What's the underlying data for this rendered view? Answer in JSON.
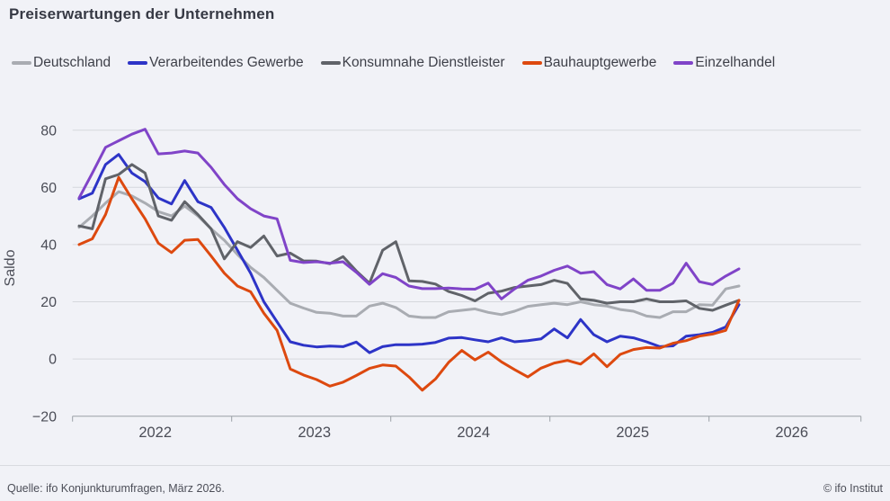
{
  "title": "Preiserwartungen der Unternehmen",
  "footer": {
    "source": "Quelle: ifo Konjunkturumfragen, März 2026.",
    "copyright": "© ifo Institut"
  },
  "colors": {
    "background": "#f1f2f7",
    "gridline": "#d6d8dd",
    "axis": "#9aa0a6",
    "text": "#4b4d57",
    "title": "#363944"
  },
  "chart_data": {
    "type": "line",
    "title": "Preiserwartungen der Unternehmen",
    "ylabel": "Saldo",
    "xlabel": "",
    "ylim": [
      -20,
      80
    ],
    "grid": true,
    "legend_position": "top",
    "yticks": {
      "values": [
        80,
        60,
        40,
        20,
        0,
        -20
      ],
      "labels": [
        "80",
        "60",
        "40",
        "20",
        "0",
        "−20"
      ]
    },
    "xticks": {
      "year_labels": [
        "2022",
        "2023",
        "2024",
        "2025",
        "2026"
      ]
    },
    "x": [
      "2022-01",
      "2022-02",
      "2022-03",
      "2022-04",
      "2022-05",
      "2022-06",
      "2022-07",
      "2022-08",
      "2022-09",
      "2022-10",
      "2022-11",
      "2022-12",
      "2023-01",
      "2023-02",
      "2023-03",
      "2023-04",
      "2023-05",
      "2023-06",
      "2023-07",
      "2023-08",
      "2023-09",
      "2023-10",
      "2023-11",
      "2023-12",
      "2024-01",
      "2024-02",
      "2024-03",
      "2024-04",
      "2024-05",
      "2024-06",
      "2024-07",
      "2024-08",
      "2024-09",
      "2024-10",
      "2024-11",
      "2024-12",
      "2025-01",
      "2025-02",
      "2025-03",
      "2025-04",
      "2025-05",
      "2025-06",
      "2025-07",
      "2025-08",
      "2025-09",
      "2025-10",
      "2025-11",
      "2025-12",
      "2026-01",
      "2026-02",
      "2026-03"
    ],
    "series": [
      {
        "id": "deutschland",
        "name": "Deutschland",
        "color": "#a9acb2",
        "values": [
          46,
          50,
          54.5,
          58.5,
          57,
          54.5,
          51.5,
          50,
          53.5,
          50,
          45.5,
          41.5,
          36.5,
          32,
          28.5,
          24,
          19.5,
          17.8,
          16.3,
          16,
          15,
          15,
          18.5,
          19.5,
          18,
          15,
          14.5,
          14.5,
          16.5,
          17,
          17.5,
          16.3,
          15.5,
          16.7,
          18.4,
          19,
          19.5,
          19,
          20,
          19,
          18.5,
          17.3,
          16.7,
          15,
          14.5,
          16.5,
          16.5,
          19,
          18.8,
          24.5,
          25.5
        ]
      },
      {
        "id": "verarbeitendes-gewerbe",
        "name": "Verarbeitendes Gewerbe",
        "color": "#2d34c7",
        "values": [
          56,
          58,
          68,
          71.5,
          65,
          62,
          56.3,
          54.2,
          62.4,
          55,
          53,
          46,
          38,
          30,
          20,
          13,
          6,
          4.8,
          4.2,
          4.5,
          4.3,
          5.9,
          2.2,
          4.3,
          5,
          5,
          5.2,
          5.8,
          7.3,
          7.5,
          6.7,
          6,
          7.4,
          6,
          6.4,
          7,
          10.5,
          7.4,
          13.8,
          8.5,
          6,
          8,
          7.4,
          6,
          4.3,
          4.6,
          8,
          8.5,
          9.3,
          11.2,
          19
        ]
      },
      {
        "id": "konsumnahe-dienstleister",
        "name": "Konsumnahe Dienstleister",
        "color": "#606369",
        "values": [
          46.5,
          45.5,
          63,
          64.5,
          68,
          65,
          50,
          48.5,
          55,
          50.5,
          45.5,
          35,
          41,
          39,
          43,
          36,
          37,
          34.3,
          34.2,
          33.3,
          35.8,
          30.8,
          26.5,
          38,
          41,
          27.3,
          27.1,
          26.2,
          23.6,
          22.2,
          20.3,
          23,
          23.7,
          25,
          25.5,
          26,
          27.5,
          26.4,
          21,
          20.5,
          19.5,
          20,
          20,
          21,
          20,
          20,
          20.3,
          17.7,
          17,
          18.8,
          20.5
        ]
      },
      {
        "id": "bauhauptgewerbe",
        "name": "Bauhauptgewerbe",
        "color": "#dd490f",
        "values": [
          40,
          42,
          50.5,
          63.5,
          56,
          49,
          40.5,
          37.2,
          41.5,
          41.8,
          36,
          30,
          25.5,
          23.5,
          16,
          10,
          -3.5,
          -5.6,
          -7.2,
          -9.5,
          -8.1,
          -5.8,
          -3.3,
          -2.1,
          -2.5,
          -6.3,
          -10.9,
          -7,
          -1.2,
          3,
          -0.3,
          2.4,
          -1,
          -3.7,
          -6.3,
          -3.2,
          -1.4,
          -0.5,
          -1.8,
          1.8,
          -2.7,
          1.6,
          3.3,
          4,
          3.8,
          5.5,
          6.4,
          8,
          8.7,
          10,
          20.5
        ]
      },
      {
        "id": "einzelhandel",
        "name": "Einzelhandel",
        "color": "#8044c8",
        "values": [
          56.3,
          65,
          74,
          76.3,
          78.6,
          80.3,
          71.7,
          72,
          72.7,
          72,
          67,
          61,
          56,
          52.5,
          50,
          49,
          34.5,
          33.7,
          34,
          33.5,
          34,
          30.3,
          26.1,
          29.8,
          28.5,
          25.5,
          24.6,
          24.6,
          24.8,
          24.5,
          24.4,
          26.5,
          21,
          24.5,
          27.5,
          29,
          31,
          32.5,
          30,
          30.5,
          26,
          24.5,
          28,
          24,
          24,
          26.5,
          33.5,
          27,
          26,
          29,
          31.5
        ]
      }
    ]
  }
}
